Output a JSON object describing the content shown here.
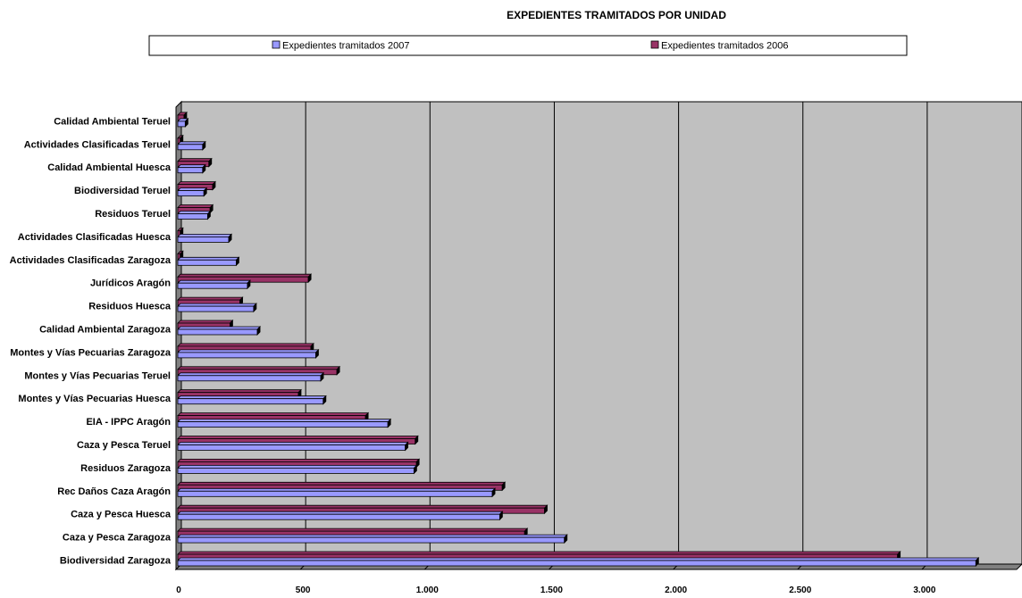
{
  "chart_data": {
    "type": "bar",
    "orientation": "horizontal",
    "title": "EXPEDIENTES TRAMITADOS POR UNIDAD",
    "categories": [
      "Biodiversidad Zaragoza",
      "Caza y Pesca Zaragoza",
      "Caza y Pesca Huesca",
      "Rec Daños Caza Aragón",
      "Residuos Zaragoza",
      "Caza y Pesca Teruel",
      "EIA - IPPC Aragón",
      "Montes y Vías Pecuarias Huesca",
      "Montes y Vías Pecuarias Teruel",
      "Montes y Vías Pecuarias Zaragoza",
      "Calidad Ambiental Zaragoza",
      "Residuos Huesca",
      "Jurídicos Aragón",
      "Actividades Clasificadas Zaragoza",
      "Actividades Clasificadas Huesca",
      "Residuos Teruel",
      "Biodiversidad Teruel",
      "Calidad Ambiental Huesca",
      "Actividades Clasificadas Teruel",
      "Calidad Ambiental Teruel"
    ],
    "series": [
      {
        "name": "Expedientes tramitados 2007",
        "color": "#9999ff",
        "values": [
          3210,
          1555,
          1295,
          1265,
          950,
          915,
          845,
          585,
          575,
          555,
          320,
          305,
          280,
          235,
          205,
          120,
          105,
          100,
          100,
          30
        ]
      },
      {
        "name": "Expedientes tramitados 2006",
        "color": "#993366",
        "values": [
          2895,
          1395,
          1475,
          1305,
          960,
          955,
          755,
          485,
          640,
          535,
          210,
          250,
          525,
          10,
          10,
          130,
          140,
          125,
          10,
          25
        ]
      }
    ],
    "xlim": [
      0,
      3400
    ],
    "x_ticks": [
      0,
      500,
      1000,
      1500,
      2000,
      2500,
      3000
    ],
    "x_tick_labels": [
      "0",
      "500",
      "1.000",
      "1.500",
      "2.000",
      "2.500",
      "3.000"
    ],
    "legend_position": "top",
    "grid": true,
    "plot_background": "#c0c0c0"
  }
}
